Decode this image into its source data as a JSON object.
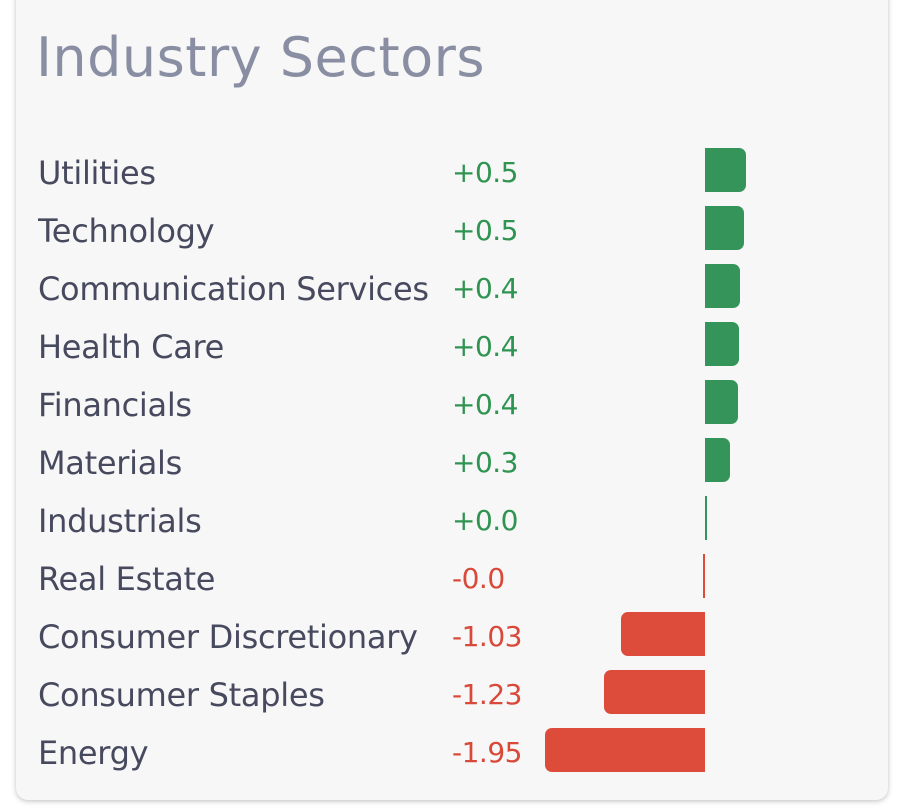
{
  "chart_data": {
    "type": "bar",
    "orientation": "horizontal",
    "title": "Industry Sectors",
    "colors": {
      "positive": "#34945a",
      "negative": "#dd4c3b"
    },
    "xlim": [
      -1.95,
      0.5
    ],
    "items": [
      {
        "name": "Utilities",
        "label": "+0.5",
        "value": 0.5
      },
      {
        "name": "Technology",
        "label": "+0.5",
        "value": 0.47
      },
      {
        "name": "Communication Services",
        "label": "+0.4",
        "value": 0.43
      },
      {
        "name": "Health Care",
        "label": "+0.4",
        "value": 0.41
      },
      {
        "name": "Financials",
        "label": "+0.4",
        "value": 0.4
      },
      {
        "name": "Materials",
        "label": "+0.3",
        "value": 0.3
      },
      {
        "name": "Industrials",
        "label": "+0.0",
        "value": 0.0
      },
      {
        "name": "Real Estate",
        "label": "-0.0",
        "value": -0.0
      },
      {
        "name": "Consumer Discretionary",
        "label": "-1.03",
        "value": -1.03
      },
      {
        "name": "Consumer Staples",
        "label": "-1.23",
        "value": -1.23
      },
      {
        "name": "Energy",
        "label": "-1.95",
        "value": -1.95
      }
    ]
  }
}
